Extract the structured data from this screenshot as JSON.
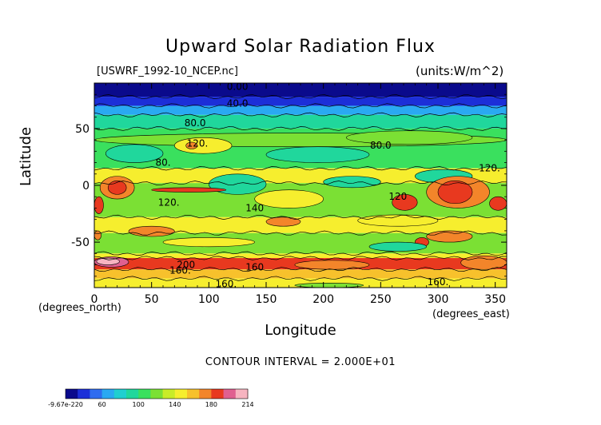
{
  "chart_data": {
    "type": "heatmap",
    "title": "Upward Solar Radiation Flux",
    "subtitle_left": "[USWRF_1992-10_NCEP.nc]",
    "subtitle_right": "(units:W/m^2)",
    "xlabel": "Longitude",
    "ylabel": "Latitude",
    "x_unit_label": "(degrees_east)",
    "y_unit_label": "(degrees_north)",
    "xlim": [
      0,
      360
    ],
    "ylim": [
      -90,
      90
    ],
    "x_ticks": [
      0,
      50,
      100,
      150,
      200,
      250,
      300,
      350
    ],
    "y_ticks": [
      50,
      0,
      -50
    ],
    "contour_interval_text": "CONTOUR INTERVAL = 2.000E+01",
    "contour_labels": [
      {
        "lon": 125,
        "lat": 87,
        "text": "0.00"
      },
      {
        "lon": 125,
        "lat": 72,
        "text": "40.0"
      },
      {
        "lon": 88,
        "lat": 55,
        "text": "80.0"
      },
      {
        "lon": 90,
        "lat": 37,
        "text": "120."
      },
      {
        "lon": 250,
        "lat": 35,
        "text": "80.0"
      },
      {
        "lon": 60,
        "lat": 20,
        "text": "80."
      },
      {
        "lon": 345,
        "lat": 15,
        "text": "120."
      },
      {
        "lon": 65,
        "lat": -15,
        "text": "120."
      },
      {
        "lon": 140,
        "lat": -20,
        "text": "140"
      },
      {
        "lon": 265,
        "lat": -10,
        "text": "120"
      },
      {
        "lon": 80,
        "lat": -70,
        "text": "200"
      },
      {
        "lon": 75,
        "lat": -75,
        "text": "160."
      },
      {
        "lon": 140,
        "lat": -72,
        "text": "160"
      },
      {
        "lon": 115,
        "lat": -87,
        "text": "160."
      },
      {
        "lon": 300,
        "lat": -85,
        "text": "160."
      }
    ],
    "colorbar": {
      "colors": [
        "#0a0a8c",
        "#1c2fd8",
        "#2f6cf0",
        "#2aa9f2",
        "#20cfd0",
        "#20d79c",
        "#3ae05e",
        "#7be034",
        "#c8ec28",
        "#f6ee2e",
        "#f7c12c",
        "#f3852a",
        "#e8391f",
        "#e06090",
        "#f7b4c0"
      ],
      "tick_labels": [
        "-9.67e-220",
        "60",
        "100",
        "140",
        "180",
        "214"
      ]
    },
    "bands": [
      {
        "lat_top": 90,
        "lat_bottom": 78,
        "color": "#0a0a8c"
      },
      {
        "lat_top": 78,
        "lat_bottom": 70,
        "color": "#1c2fd8"
      },
      {
        "lat_top": 70,
        "lat_bottom": 62,
        "color": "#2aa9f2"
      },
      {
        "lat_top": 62,
        "lat_bottom": 50,
        "color": "#20d79c"
      },
      {
        "lat_top": 50,
        "lat_bottom": 15,
        "color": "#3ae05e"
      },
      {
        "lat_top": 15,
        "lat_bottom": 2,
        "color": "#f6ee2e"
      },
      {
        "lat_top": 2,
        "lat_bottom": -28,
        "color": "#7be034"
      },
      {
        "lat_top": -28,
        "lat_bottom": -42,
        "color": "#f6ee2e"
      },
      {
        "lat_top": -42,
        "lat_bottom": -60,
        "color": "#7be034"
      },
      {
        "lat_top": -60,
        "lat_bottom": -64,
        "color": "#f6ee2e"
      },
      {
        "lat_top": -64,
        "lat_bottom": -74,
        "color": "#e8391f"
      },
      {
        "lat_top": -74,
        "lat_bottom": -82,
        "color": "#f7c12c"
      },
      {
        "lat_top": -82,
        "lat_bottom": -90,
        "color": "#f6ee2e"
      }
    ],
    "patches": [
      {
        "lon": [
          0,
          360
        ],
        "lat": [
          34,
          46
        ],
        "color": "#7be034"
      },
      {
        "lon": [
          10,
          60
        ],
        "lat": [
          20,
          36
        ],
        "color": "#20d79c"
      },
      {
        "lon": [
          150,
          240
        ],
        "lat": [
          20,
          34
        ],
        "color": "#20d79c"
      },
      {
        "lon": [
          220,
          330
        ],
        "lat": [
          36,
          48
        ],
        "color": "#7be034"
      },
      {
        "lon": [
          70,
          120
        ],
        "lat": [
          28,
          42
        ],
        "color": "#f6ee2e"
      },
      {
        "lon": [
          80,
          90
        ],
        "lat": [
          32,
          38
        ],
        "color": "#f3852a"
      },
      {
        "lon": [
          100,
          150
        ],
        "lat": [
          -8,
          10
        ],
        "color": "#20d79c"
      },
      {
        "lon": [
          200,
          250
        ],
        "lat": [
          -2,
          8
        ],
        "color": "#20d79c"
      },
      {
        "lon": [
          280,
          330
        ],
        "lat": [
          2,
          14
        ],
        "color": "#20d79c"
      },
      {
        "lon": [
          5,
          35
        ],
        "lat": [
          -12,
          8
        ],
        "color": "#f3852a"
      },
      {
        "lon": [
          12,
          28
        ],
        "lat": [
          -8,
          4
        ],
        "color": "#e8391f"
      },
      {
        "lon": [
          50,
          115
        ],
        "lat": [
          -6,
          -2
        ],
        "color": "#e8391f"
      },
      {
        "lon": [
          290,
          345
        ],
        "lat": [
          -20,
          8
        ],
        "color": "#f3852a"
      },
      {
        "lon": [
          300,
          330
        ],
        "lat": [
          -16,
          4
        ],
        "color": "#e8391f"
      },
      {
        "lon": [
          260,
          282
        ],
        "lat": [
          -22,
          -8
        ],
        "color": "#e8391f"
      },
      {
        "lon": [
          345,
          360
        ],
        "lat": [
          -22,
          -10
        ],
        "color": "#e8391f"
      },
      {
        "lon": [
          0,
          8
        ],
        "lat": [
          -25,
          -10
        ],
        "color": "#e8391f"
      },
      {
        "lon": [
          140,
          200
        ],
        "lat": [
          -20,
          -4
        ],
        "color": "#f6ee2e"
      },
      {
        "lon": [
          30,
          70
        ],
        "lat": [
          -45,
          -36
        ],
        "color": "#f3852a"
      },
      {
        "lon": [
          150,
          180
        ],
        "lat": [
          -36,
          -28
        ],
        "color": "#f3852a"
      },
      {
        "lon": [
          230,
          300
        ],
        "lat": [
          -36,
          -26
        ],
        "color": "#f6ee2e"
      },
      {
        "lon": [
          290,
          330
        ],
        "lat": [
          -50,
          -40
        ],
        "color": "#f3852a"
      },
      {
        "lon": [
          0,
          6
        ],
        "lat": [
          -48,
          -40
        ],
        "color": "#f3852a"
      },
      {
        "lon": [
          280,
          292
        ],
        "lat": [
          -54,
          -46
        ],
        "color": "#e8391f"
      },
      {
        "lon": [
          60,
          140
        ],
        "lat": [
          -54,
          -46
        ],
        "color": "#f6ee2e"
      },
      {
        "lon": [
          240,
          290
        ],
        "lat": [
          -58,
          -50
        ],
        "color": "#20d79c"
      },
      {
        "lon": [
          0,
          30
        ],
        "lat": [
          -72,
          -63
        ],
        "color": "#e06090"
      },
      {
        "lon": [
          2,
          22
        ],
        "lat": [
          -70,
          -64
        ],
        "color": "#f7b4c0"
      },
      {
        "lon": [
          175,
          240
        ],
        "lat": [
          -74,
          -66
        ],
        "color": "#f3852a"
      },
      {
        "lon": [
          320,
          360
        ],
        "lat": [
          -74,
          -62
        ],
        "color": "#f3852a"
      },
      {
        "lon": [
          175,
          235
        ],
        "lat": [
          -90,
          -86
        ],
        "color": "#7be034"
      }
    ]
  }
}
